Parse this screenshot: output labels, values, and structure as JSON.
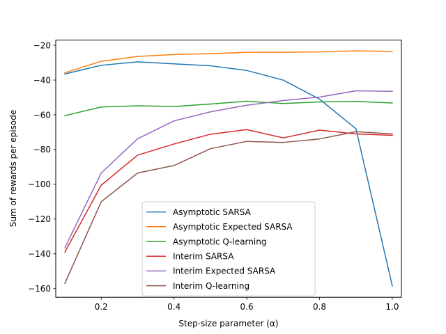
{
  "chart_data": {
    "type": "line",
    "title": "",
    "xlabel": "Step-size parameter (α)",
    "ylabel": "Sum of rewards per episode",
    "xlim": [
      0.075,
      1.025
    ],
    "ylim": [
      -165,
      -17
    ],
    "xticks": [
      0.2,
      0.4,
      0.6,
      0.8,
      1.0
    ],
    "xtick_labels": [
      "0.2",
      "0.4",
      "0.6",
      "0.8",
      "1.0"
    ],
    "yticks": [
      -160,
      -140,
      -120,
      -100,
      -80,
      -60,
      -40,
      -20
    ],
    "ytick_labels": [
      "−160",
      "−140",
      "−120",
      "−100",
      "−80",
      "−60",
      "−40",
      "−20"
    ],
    "grid": false,
    "legend_position": "lower-center",
    "x": [
      0.1,
      0.2,
      0.3,
      0.4,
      0.5,
      0.6,
      0.7,
      0.8,
      0.9,
      1.0
    ],
    "series": [
      {
        "name": "Asymptotic SARSA",
        "color": "#1f77b4",
        "values": [
          -36.5,
          -31.5,
          -29.5,
          -30.7,
          -31.8,
          -34.5,
          -40,
          -51,
          -68,
          -158.5
        ]
      },
      {
        "name": "Asymptotic Expected SARSA",
        "color": "#ff7f0e",
        "values": [
          -35.8,
          -29.2,
          -26.4,
          -25.3,
          -24.8,
          -24.0,
          -24.0,
          -23.8,
          -23.2,
          -23.5
        ]
      },
      {
        "name": "Asymptotic Q-learning",
        "color": "#2ca02c",
        "values": [
          -60.5,
          -55.5,
          -54.8,
          -55.2,
          -53.8,
          -52.2,
          -53.5,
          -52.6,
          -52.3,
          -53.2
        ]
      },
      {
        "name": "Interim SARSA",
        "color": "#d62728",
        "values": [
          -139,
          -100.5,
          -83.2,
          -76.8,
          -71.2,
          -68.5,
          -73.3,
          -68.8,
          -71.0,
          -71.8
        ]
      },
      {
        "name": "Interim Expected SARSA",
        "color": "#9467bd",
        "values": [
          -136.5,
          -93.5,
          -73.8,
          -63.5,
          -58.3,
          -54.5,
          -51.8,
          -49.8,
          -46.2,
          -46.5
        ]
      },
      {
        "name": "Interim Q-learning",
        "color": "#8c564b",
        "values": [
          -157,
          -110,
          -93.5,
          -89.2,
          -79.5,
          -75.3,
          -75.9,
          -73.9,
          -69.7,
          -71.0
        ]
      }
    ]
  }
}
